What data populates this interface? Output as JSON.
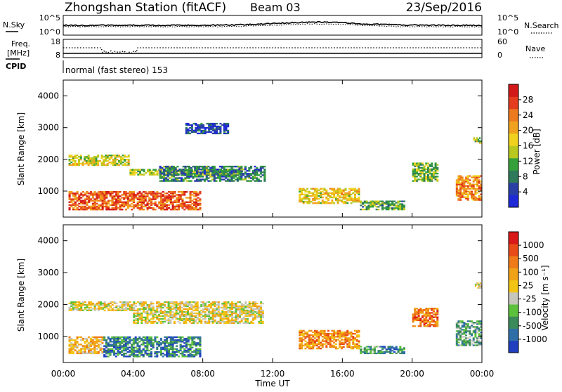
{
  "header": {
    "title": "Zhongshan Station (fitACF)",
    "beam": "Beam 03",
    "date": "23/Sep/2016"
  },
  "noise_panel": {
    "left_label": "N.Sky",
    "right_label": "N.Search",
    "left_ticks": [
      "10^5",
      "10^0"
    ],
    "right_ticks": [
      "10^5",
      "10^0"
    ]
  },
  "freq_panel": {
    "left_label_1": "Freq.",
    "left_label_2": "[MHz]",
    "right_label": "Nave",
    "left_ticks": [
      "18",
      "8"
    ],
    "right_ticks": [
      "60",
      "0"
    ],
    "cpid_label": "CPID",
    "cpid_text": "normal (fast stereo) 153"
  },
  "chart_data": [
    {
      "type": "heatmap",
      "name": "Power",
      "ylabel": "Slant Range [km]",
      "xlabel": "Time UT",
      "ylim": [
        180,
        4500
      ],
      "y_ticks": [
        "4000",
        "3000",
        "2000",
        "1000"
      ],
      "x_ticks": [
        "00:00",
        "04:00",
        "08:00",
        "12:00",
        "16:00",
        "20:00",
        "00:00"
      ],
      "colorbar": {
        "label": "Power [dB]",
        "ticks": [
          "28",
          "24",
          "20",
          "16",
          "12",
          "8",
          "4"
        ],
        "colors": [
          "#1e2ad8",
          "#2a3fa6",
          "#2f7a5a",
          "#34a03a",
          "#b8c81e",
          "#f0d21e",
          "#f0a21e",
          "#ee7a1e",
          "#e33c1e",
          "#d21818"
        ]
      },
      "patches": [
        {
          "t": [
            0.3,
            7.9
          ],
          "r": [
            400,
            1000
          ],
          "level": 0.8
        },
        {
          "t": [
            0.3,
            3.8
          ],
          "r": [
            1800,
            2150
          ],
          "level": 0.5
        },
        {
          "t": [
            3.8,
            10.3
          ],
          "r": [
            1500,
            1700
          ],
          "level": 0.45
        },
        {
          "t": [
            5.5,
            11.6
          ],
          "r": [
            1300,
            1800
          ],
          "level": 0.25
        },
        {
          "t": [
            13.5,
            17.0
          ],
          "r": [
            600,
            1100
          ],
          "level": 0.55
        },
        {
          "t": [
            17.0,
            19.6
          ],
          "r": [
            400,
            700
          ],
          "level": 0.35
        },
        {
          "t": [
            20.0,
            21.5
          ],
          "r": [
            1300,
            1900
          ],
          "level": 0.4
        },
        {
          "t": [
            22.5,
            24.0
          ],
          "r": [
            700,
            1500
          ],
          "level": 0.7
        },
        {
          "t": [
            23.5,
            24.0
          ],
          "r": [
            2500,
            2700
          ],
          "level": 0.45
        },
        {
          "t": [
            7.0,
            9.5
          ],
          "r": [
            2800,
            3150
          ],
          "level": 0.15
        }
      ]
    },
    {
      "type": "heatmap",
      "name": "Velocity",
      "ylabel": "Slant Range [km]",
      "xlabel": "Time UT",
      "ylim": [
        180,
        4500
      ],
      "y_ticks": [
        "4000",
        "3000",
        "2000",
        "1000"
      ],
      "x_ticks": [
        "00:00",
        "04:00",
        "08:00",
        "12:00",
        "16:00",
        "20:00",
        "00:00"
      ],
      "colorbar": {
        "label": "Velocity [m s⁻¹]",
        "ticks": [
          "1000",
          "500",
          "100",
          "25",
          "-25",
          "-100",
          "-500",
          "-1000"
        ],
        "colors": [
          "#1f3fbf",
          "#2f6fa8",
          "#3b8a5a",
          "#5cc23c",
          "#c6c6bd",
          "#f2c414",
          "#f0a216",
          "#ee7a18",
          "#e84a18",
          "#d91818"
        ]
      },
      "patches": [
        {
          "t": [
            0.3,
            2.3
          ],
          "r": [
            450,
            1000
          ],
          "level": 0.6
        },
        {
          "t": [
            2.3,
            7.9
          ],
          "r": [
            350,
            1000
          ],
          "level": 0.2
        },
        {
          "t": [
            0.3,
            4.0
          ],
          "r": [
            1800,
            2100
          ],
          "level": 0.5
        },
        {
          "t": [
            4.0,
            11.5
          ],
          "r": [
            1400,
            2100
          ],
          "level": 0.5
        },
        {
          "t": [
            13.5,
            17.0
          ],
          "r": [
            600,
            1200
          ],
          "level": 0.7
        },
        {
          "t": [
            17.0,
            19.6
          ],
          "r": [
            450,
            700
          ],
          "level": 0.25
        },
        {
          "t": [
            20.0,
            21.5
          ],
          "r": [
            1300,
            1900
          ],
          "level": 0.75
        },
        {
          "t": [
            22.5,
            24.0
          ],
          "r": [
            700,
            1500
          ],
          "level": 0.3
        },
        {
          "t": [
            23.6,
            24.0
          ],
          "r": [
            2500,
            2700
          ],
          "level": 0.5
        }
      ]
    }
  ]
}
